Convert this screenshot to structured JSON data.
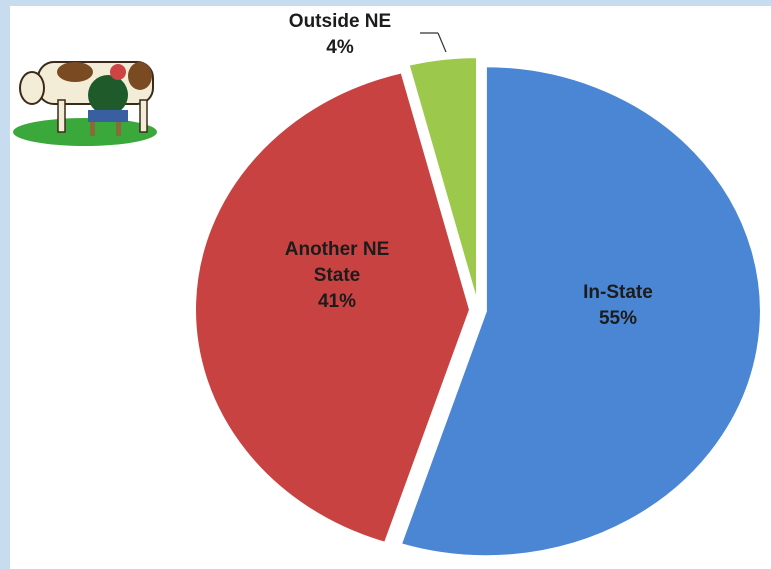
{
  "chart_data": {
    "type": "pie",
    "categories": [
      "In-State",
      "Another NE State",
      "Outside NE"
    ],
    "values": [
      55,
      41,
      4
    ],
    "value_labels": [
      "55%",
      "41%",
      "4%"
    ],
    "colors": [
      "#4a86d4",
      "#c94242",
      "#9cc94c"
    ]
  }
}
